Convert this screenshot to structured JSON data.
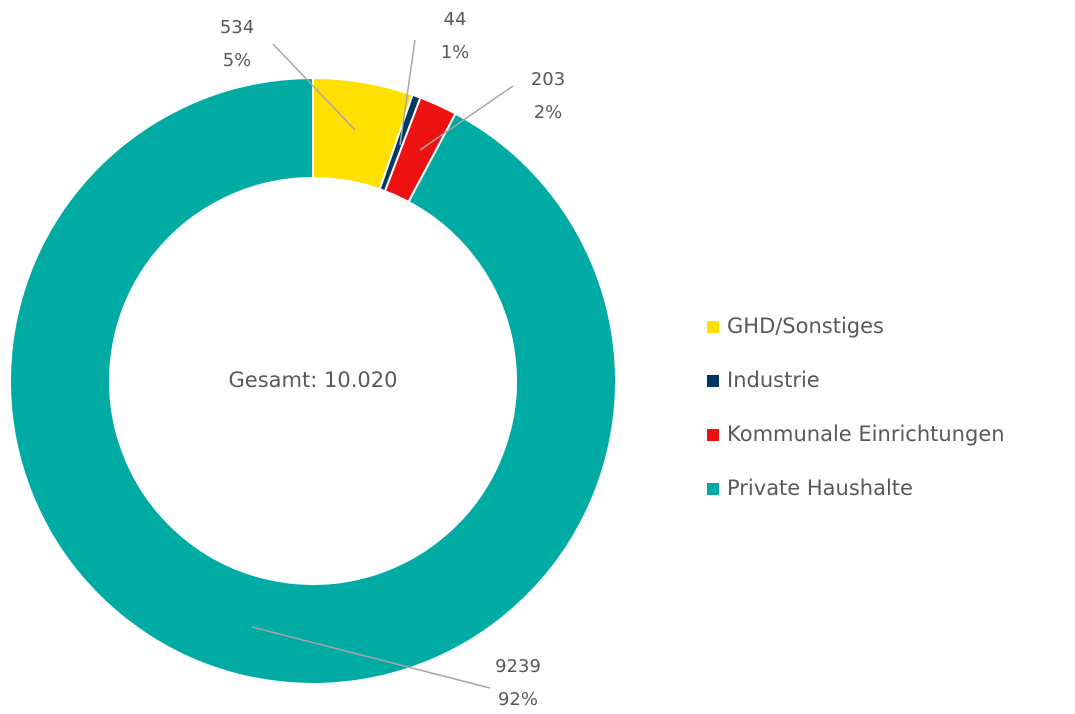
{
  "chart_data": {
    "type": "donut",
    "categories": [
      "GHD/Sonstiges",
      "Industrie",
      "Kommunale Einrichtungen",
      "Private Haushalte"
    ],
    "values": [
      534,
      44,
      203,
      9239
    ],
    "percent_labels": [
      "5%",
      "1%",
      "2%",
      "92%"
    ],
    "colors": [
      "#ffe000",
      "#003865",
      "#ee1111",
      "#00aba3"
    ],
    "center_label": "Gesamt: 10.020",
    "legend": "right"
  }
}
